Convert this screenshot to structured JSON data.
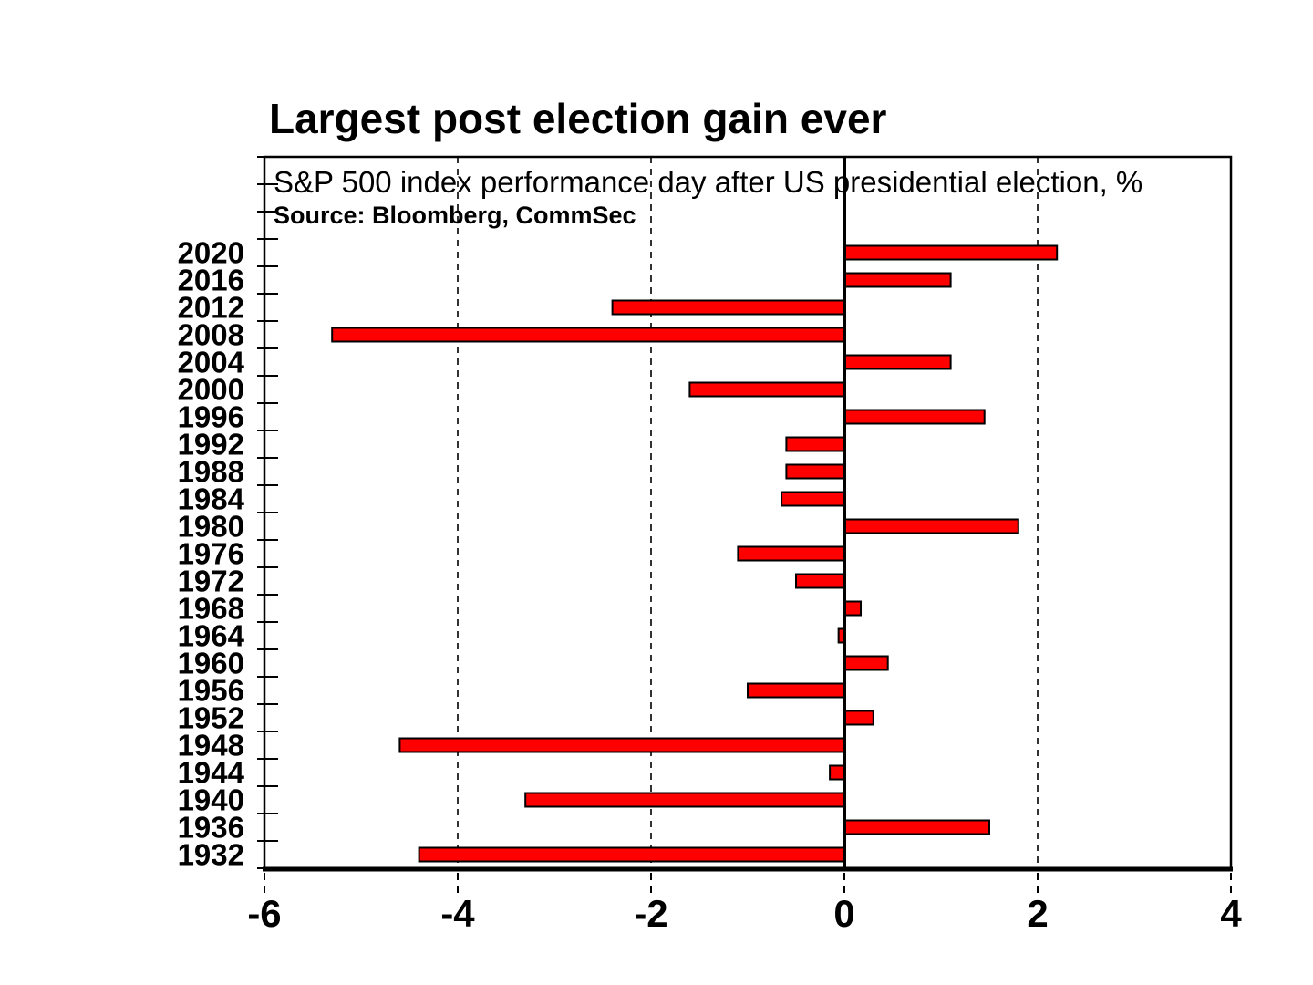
{
  "title": "Largest post election gain ever",
  "subtitle": "S&P 500 index performance day after US presidential election, %",
  "source": "Source: Bloomberg, CommSec",
  "chart_data": {
    "type": "bar",
    "orientation": "horizontal",
    "title": "Largest post election gain ever",
    "subtitle": "S&P 500 index performance day after US presidential election, %",
    "source": "Source: Bloomberg, CommSec",
    "categories": [
      "2020",
      "2016",
      "2012",
      "2008",
      "2004",
      "2000",
      "1996",
      "1992",
      "1988",
      "1984",
      "1980",
      "1976",
      "1972",
      "1968",
      "1964",
      "1960",
      "1956",
      "1952",
      "1948",
      "1944",
      "1940",
      "1936",
      "1932"
    ],
    "values": [
      2.2,
      1.1,
      -2.4,
      -5.3,
      1.1,
      -1.6,
      1.45,
      -0.6,
      -0.6,
      -0.65,
      1.8,
      -1.1,
      -0.5,
      0.17,
      -0.06,
      0.45,
      -1.0,
      0.3,
      -4.6,
      -0.15,
      -3.3,
      1.5,
      -4.4
    ],
    "xlabel": "",
    "ylabel": "",
    "xlim": [
      -6,
      4
    ],
    "x_ticks": [
      -6,
      -4,
      -2,
      0,
      2,
      4
    ],
    "grid_x": [
      -4,
      -2,
      2
    ],
    "grid_style": "dashed",
    "zero_line": true,
    "legend": "none",
    "bar_color": "#FF0000",
    "bar_border_color": "#000000",
    "axis_color": "#000000",
    "text_color": "#000000",
    "background_color": "#FFFFFF"
  }
}
